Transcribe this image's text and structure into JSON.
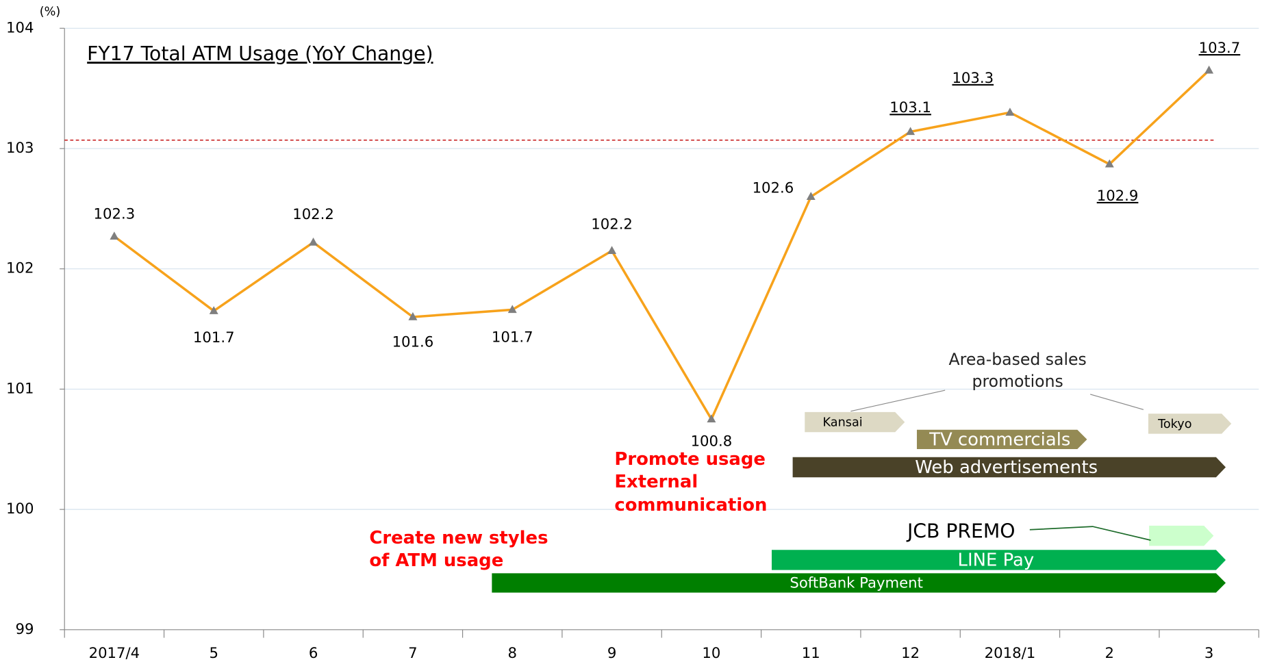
{
  "chart_data": {
    "type": "line",
    "title": "FY17 Total ATM Usage (YoY Change)",
    "y_unit": "(%)",
    "categories": [
      "2017/4",
      "5",
      "6",
      "7",
      "8",
      "9",
      "10",
      "11",
      "12",
      "2018/1",
      "2",
      "3"
    ],
    "values": [
      102.27,
      101.65,
      102.22,
      101.6,
      101.66,
      102.15,
      100.75,
      102.6,
      103.14,
      103.3,
      102.87,
      103.65
    ],
    "value_labels": [
      "102.3",
      "101.7",
      "102.2",
      "101.6",
      "101.7",
      "102.2",
      "100.8",
      "102.6",
      "103.1",
      "103.3",
      "102.9",
      "103.7"
    ],
    "color": "#f7a21b",
    "marker_color": "#7f7f7f",
    "ylim": [
      99,
      104
    ],
    "yticks": [
      99,
      100,
      101,
      102,
      103,
      104
    ],
    "grid": true,
    "reference_line": {
      "value": 103.07,
      "color": "#c00000"
    },
    "annotations": {
      "area_promotions": [
        "Area-based sales",
        "promotions"
      ],
      "campaigns": [
        "Kansai",
        "Tokyo",
        "TV commercials",
        "Web advertisements",
        "JCB PREMO",
        "LINE Pay",
        "SoftBank Payment"
      ],
      "notes": [
        [
          "Promote usage",
          "External",
          "communication"
        ],
        [
          "Create new styles",
          "of ATM usage"
        ]
      ]
    }
  }
}
